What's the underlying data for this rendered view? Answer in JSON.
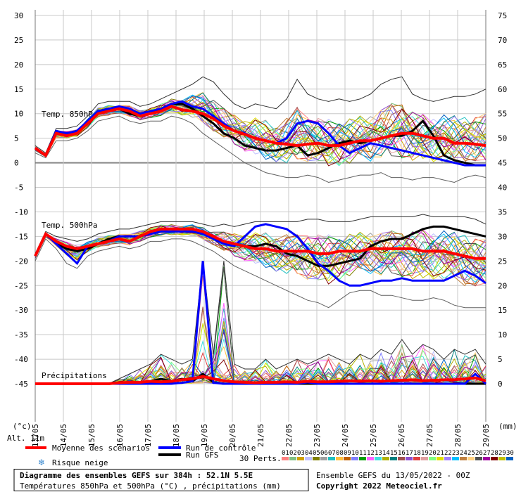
{
  "chart_data": {
    "type": "line",
    "left_axis_ticks": [
      30,
      25,
      20,
      15,
      10,
      5,
      0,
      -5,
      -10,
      -15,
      -20,
      -25,
      -30,
      -35,
      -40,
      -45
    ],
    "right_axis_ticks": [
      75,
      70,
      65,
      60,
      55,
      50,
      45,
      40,
      35,
      30,
      25,
      20,
      15,
      10,
      5,
      0
    ],
    "ylim_left": [
      -45,
      30
    ],
    "left_unit": "(°c)",
    "right_unit": "(mm)",
    "dates": [
      "13/05",
      "14/05",
      "15/05",
      "16/05",
      "17/05",
      "18/05",
      "19/05",
      "20/05",
      "21/05",
      "22/05",
      "23/05",
      "24/05",
      "25/05",
      "26/05",
      "27/05",
      "28/05",
      "29/05"
    ],
    "panels": {
      "t850": {
        "label": "Temp. 850hPa",
        "mean": [
          3,
          1.5,
          6,
          5.5,
          6,
          8,
          10,
          10.5,
          11,
          10.5,
          9.5,
          10,
          10.5,
          11.5,
          10.8,
          10.5,
          10,
          9,
          7.5,
          6.5,
          5.8,
          5,
          4.5,
          4,
          3.8,
          3.5,
          3.8,
          4,
          3.5,
          3.5,
          4,
          4.5,
          4.5,
          5,
          5.5,
          6,
          6,
          5.5,
          5,
          5,
          4,
          4,
          3.8,
          3.5
        ],
        "control": [
          3,
          1.5,
          6.5,
          6,
          6.5,
          8.5,
          10.5,
          11,
          11.5,
          11,
          10,
          10.5,
          11,
          12,
          12.5,
          11.5,
          11,
          9.5,
          8,
          6.5,
          6,
          5,
          4.5,
          4,
          5,
          8,
          8.5,
          8,
          6,
          3.5,
          2,
          3,
          4,
          3.5,
          3,
          2.5,
          2,
          1.5,
          1,
          0.5,
          0,
          -0.5,
          -0.5,
          -0.5
        ],
        "gfs": [
          3,
          1.5,
          6,
          6,
          6.5,
          8,
          10.5,
          11,
          11,
          10,
          9.5,
          10,
          11,
          12,
          12,
          11,
          9.5,
          8,
          6,
          5,
          3.5,
          3,
          2.5,
          2.5,
          3,
          3.5,
          1.5,
          2,
          3,
          4,
          4.5,
          4,
          4.5,
          5,
          5.5,
          5.5,
          6.5,
          8.5,
          5.5,
          1.5,
          0.5,
          0,
          -0.5,
          -0.5
        ],
        "min": [
          2,
          1,
          4.5,
          4.5,
          5,
          6.5,
          8.5,
          9,
          9.5,
          8.5,
          8,
          8.5,
          8.5,
          9.5,
          9,
          8,
          6,
          4.5,
          3,
          1.5,
          0,
          -1,
          -2,
          -2.5,
          -3,
          -3,
          -2.5,
          -3,
          -4,
          -3.5,
          -3,
          -2.5,
          -2.5,
          -2,
          -3,
          -3,
          -3.5,
          -3,
          -3,
          -3.5,
          -4,
          -3,
          -2.5,
          -3
        ],
        "max": [
          3.5,
          2,
          7,
          7,
          7.5,
          9.5,
          12,
          12.5,
          12.5,
          12.5,
          11.5,
          12,
          13,
          14,
          15,
          16,
          17.5,
          16.5,
          14,
          12,
          11,
          12,
          11.5,
          11,
          13,
          17,
          14,
          13,
          12.5,
          13,
          12.5,
          13,
          14,
          16,
          17,
          17.5,
          14,
          13,
          12.5,
          13,
          13.5,
          13.5,
          14,
          15
        ]
      },
      "t500": {
        "label": "Temp. 500hPa",
        "mean": [
          -19,
          -14.5,
          -16,
          -17,
          -17.5,
          -17,
          -16.5,
          -16,
          -15.5,
          -16,
          -15,
          -14,
          -13.5,
          -13.5,
          -13.5,
          -13.5,
          -14,
          -15,
          -16,
          -16.5,
          -17,
          -17.5,
          -17.5,
          -18,
          -18,
          -18,
          -18,
          -18.5,
          -18.5,
          -18,
          -18,
          -18,
          -17.5,
          -17.5,
          -17.5,
          -17.5,
          -17.5,
          -18,
          -18,
          -18,
          -18.5,
          -19,
          -19.5,
          -19.5
        ],
        "control": [
          -19,
          -14.5,
          -16.5,
          -18.5,
          -20.5,
          -17,
          -16.5,
          -16,
          -15,
          -15,
          -15,
          -14.5,
          -14,
          -14,
          -14,
          -14,
          -14.5,
          -15.5,
          -16.5,
          -17,
          -15,
          -13,
          -12.5,
          -13,
          -13.5,
          -15,
          -17.5,
          -20.5,
          -22,
          -24,
          -25,
          -25,
          -24.5,
          -24,
          -24,
          -23.5,
          -24,
          -24,
          -24,
          -24,
          -23,
          -22,
          -23,
          -24.5
        ],
        "gfs": [
          -19,
          -14.5,
          -16.5,
          -17.5,
          -18,
          -17.5,
          -16.5,
          -15.5,
          -15,
          -15,
          -15,
          -14,
          -13.5,
          -13.5,
          -13.5,
          -13.5,
          -14,
          -15,
          -16,
          -16.5,
          -17,
          -17,
          -16.5,
          -17,
          -18.5,
          -19,
          -20,
          -21,
          -21,
          -20.5,
          -20,
          -19.5,
          -17,
          -16,
          -15.5,
          -15.5,
          -14.5,
          -13.5,
          -13,
          -13,
          -13.5,
          -14,
          -14.5,
          -15
        ],
        "min": [
          -20,
          -15.5,
          -17.5,
          -20.5,
          -21.5,
          -19,
          -18,
          -17.5,
          -17,
          -17.5,
          -17,
          -16,
          -16,
          -15.5,
          -15.5,
          -16,
          -17,
          -18,
          -19.5,
          -21,
          -22,
          -23,
          -24,
          -25,
          -26,
          -27,
          -28,
          -28.5,
          -29.5,
          -28,
          -26.5,
          -26,
          -26,
          -27,
          -27,
          -27.5,
          -28,
          -28,
          -27.5,
          -28,
          -29,
          -29.5,
          -29.5,
          -29.5
        ],
        "max": [
          -18.5,
          -14,
          -15,
          -15.5,
          -16,
          -15.5,
          -14.5,
          -14,
          -13.5,
          -13.5,
          -13,
          -12.5,
          -12,
          -12,
          -12,
          -12,
          -12.5,
          -13,
          -12.5,
          -13,
          -12.5,
          -12,
          -12,
          -12,
          -12,
          -12,
          -11.5,
          -11.5,
          -12,
          -12,
          -12,
          -11.5,
          -11,
          -11,
          -11,
          -11,
          -11,
          -10.5,
          -11,
          -11,
          -11,
          -11,
          -11.5,
          -12.5
        ]
      },
      "precip": {
        "label": "Précipitations",
        "mean": [
          0,
          0,
          0,
          0,
          0,
          0,
          0,
          0,
          0.2,
          0.3,
          0.3,
          0.5,
          0.4,
          0.5,
          0.8,
          1.0,
          1.5,
          1.0,
          0.6,
          0.4,
          0.3,
          0.2,
          0.3,
          0.3,
          0.4,
          0.3,
          0.5,
          0.4,
          0.4,
          0.5,
          0.6,
          0.5,
          0.6,
          0.5,
          0.6,
          0.7,
          0.8,
          0.6,
          0.7,
          0.8,
          0.8,
          1.0,
          1.2,
          0.6
        ],
        "control": [
          0,
          0,
          0,
          0,
          0,
          0,
          0,
          0,
          0,
          0,
          0,
          0,
          0,
          0,
          0.2,
          0.5,
          25,
          0.2,
          0,
          0,
          0,
          0,
          0,
          0,
          0,
          0,
          0.3,
          0,
          0,
          0,
          0,
          0,
          0,
          0,
          0,
          0,
          0,
          0,
          0,
          0,
          0,
          0,
          2,
          0
        ],
        "gfs": [
          0,
          0,
          0,
          0,
          0,
          0,
          0,
          0,
          0,
          0,
          0,
          0.5,
          1,
          0.5,
          1,
          0.5,
          2,
          0.3,
          0,
          0,
          0,
          0,
          0,
          0,
          0,
          0,
          0,
          0,
          0,
          0,
          0,
          0,
          0,
          0,
          0,
          0,
          0,
          0,
          0,
          0,
          0,
          0,
          0,
          0
        ],
        "max": [
          0,
          0,
          0,
          0,
          0,
          0,
          0,
          0,
          1,
          2,
          3,
          4,
          6,
          5,
          4,
          5,
          25,
          6,
          25,
          4,
          3,
          3,
          5,
          3,
          4,
          5,
          4,
          5,
          6,
          5,
          4,
          6,
          5,
          7,
          6,
          9,
          6,
          8,
          7,
          5,
          7,
          6,
          7,
          4
        ]
      }
    }
  },
  "labels": {
    "alt": "Alt. 11m",
    "left_unit": "(°c)",
    "right_unit": "(mm)",
    "t850": "Temp. 850hPa",
    "t500": "Temp. 500hPa",
    "precip": "Précipitations"
  },
  "legend": {
    "mean": "Moyenne des scénarios",
    "control": "Run de contrôle",
    "gfs": "Run GFS",
    "snow": "Risque neige",
    "perts": "30 Perts.",
    "pert_numbers": [
      "01",
      "02",
      "03",
      "04",
      "05",
      "06",
      "07",
      "08",
      "09",
      "10",
      "11",
      "12",
      "13",
      "14",
      "15",
      "16",
      "17",
      "18",
      "19",
      "20",
      "21",
      "22",
      "23",
      "24",
      "25",
      "26",
      "27",
      "28",
      "29",
      "30"
    ],
    "colors": {
      "mean": "#ff0000",
      "control": "#0000ff",
      "gfs": "#000000",
      "perturbations": [
        "#ff8080",
        "#80c080",
        "#d0a000",
        "#c0c0ff",
        "#808000",
        "#a0a0a0",
        "#20c0c0",
        "#ffc040",
        "#c06000",
        "#8080ff",
        "#00a000",
        "#ff60ff",
        "#40e0e0",
        "#b0b000",
        "#008080",
        "#a05050",
        "#9050d0",
        "#e04040",
        "#e0a0a0",
        "#80ff80",
        "#e0e000",
        "#a080ff",
        "#00c0ff",
        "#c08040",
        "#ffd080",
        "#505050",
        "#a000a0",
        "#800000",
        "#c0c000",
        "#0060c0"
      ]
    }
  },
  "footer": {
    "title": "Diagramme des ensembles GEFS sur 384h : 52.1N 5.5E",
    "subtitle": "Températures 850hPa et 500hPa (°C) , précipitations (mm)",
    "run": "Ensemble GEFS du 13/05/2022 - 00Z",
    "copyright": "Copyright 2022 Meteociel.fr"
  }
}
